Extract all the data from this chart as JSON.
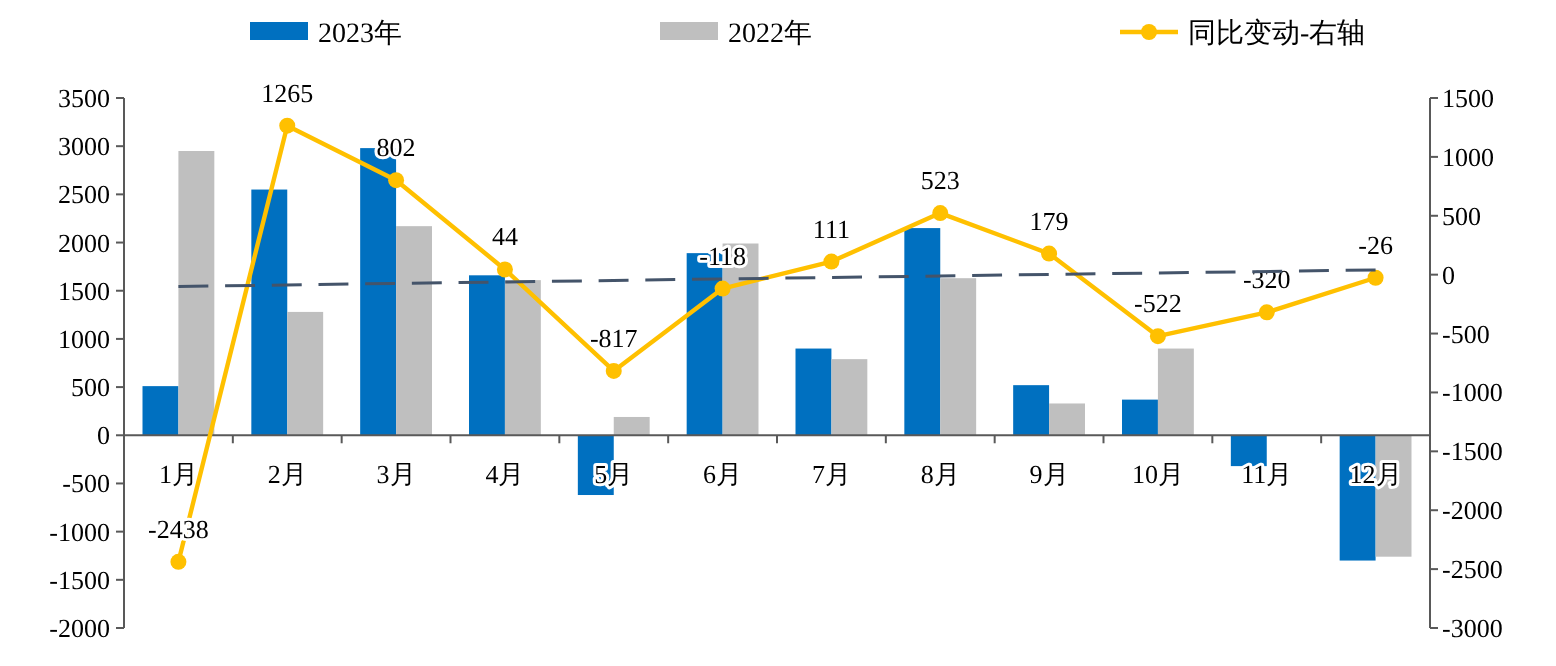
{
  "chart_data": {
    "type": "bar",
    "categories": [
      "1月",
      "2月",
      "3月",
      "4月",
      "5月",
      "6月",
      "7月",
      "8月",
      "9月",
      "10月",
      "11月",
      "12月"
    ],
    "ylim": [
      -2000,
      3500
    ],
    "yticks": [
      -2000,
      -1500,
      -1000,
      -500,
      0,
      500,
      1000,
      1500,
      2000,
      2500,
      3000,
      3500
    ],
    "y2lim": [
      -3000,
      1500
    ],
    "y2ticks": [
      -3000,
      -2500,
      -2000,
      -1500,
      -1000,
      -500,
      0,
      500,
      1000,
      1500
    ],
    "legend": "top",
    "grid": false,
    "series": [
      {
        "name": "2023年",
        "color": "#0070c0",
        "values": [
          510,
          2550,
          2980,
          1660,
          -620,
          1890,
          900,
          2150,
          520,
          370,
          -320,
          -1300
        ]
      },
      {
        "name": "2022年",
        "color": "#bfbfbf",
        "values": [
          2950,
          1280,
          2170,
          1610,
          190,
          1990,
          790,
          1630,
          330,
          900,
          null,
          -1260
        ]
      },
      {
        "name": "同比变动-右轴",
        "type": "line",
        "axis": "y2",
        "color": "#ffc000",
        "marker": "circle",
        "values": [
          -2438,
          1265,
          802,
          44,
          -817,
          -118,
          111,
          523,
          179,
          -522,
          -320,
          -26
        ],
        "value_labels": [
          "-2438",
          "1265",
          "802",
          "44",
          "-817",
          "-118",
          "111",
          "523",
          "179",
          "-522",
          "-320",
          "-26"
        ]
      },
      {
        "type": "line",
        "axis": "y2",
        "color": "#44546a",
        "line_style": "dashed",
        "x": [
          "1月",
          "12月"
        ],
        "values": [
          -100,
          40
        ]
      }
    ]
  }
}
